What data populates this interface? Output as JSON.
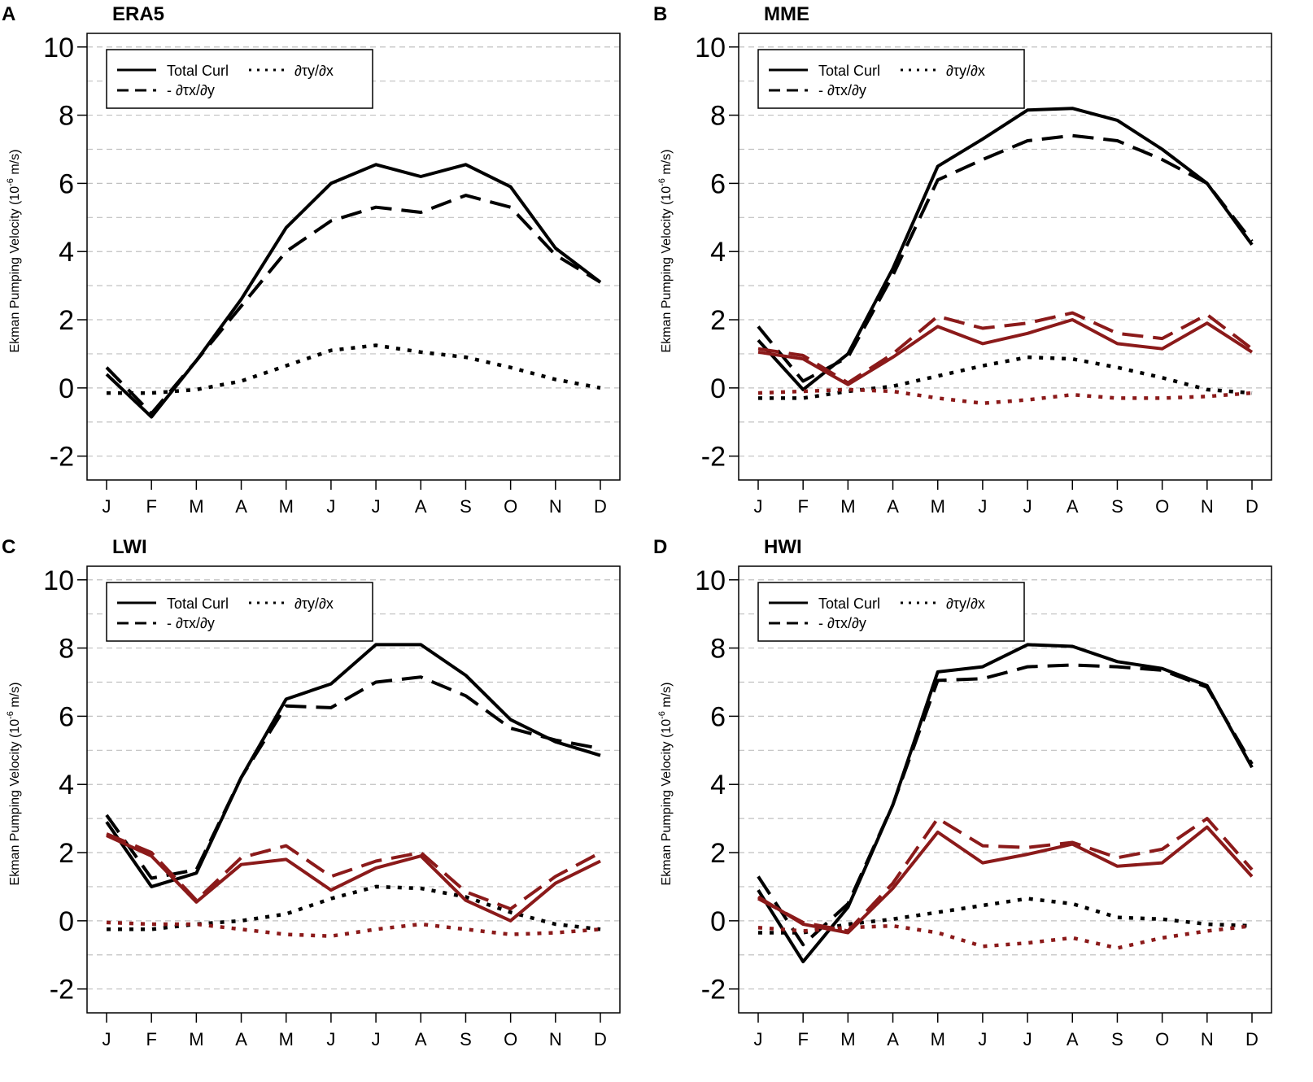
{
  "figure": {
    "y_label": "Ekman Pumping Velocity (10",
    "y_label_exp": "-6",
    "y_label_unit": " m/s)",
    "colors": {
      "black": "#000000",
      "red": "#8b1a1a",
      "grid": "#c0c0c0"
    },
    "legend": {
      "total": "Total Curl",
      "dty": "∂τy/∂x",
      "dtx": "- ∂τx/∂y"
    }
  },
  "chart_data": [
    {
      "letter": "A",
      "title": "ERA5",
      "type": "line",
      "categories": [
        "J",
        "F",
        "M",
        "A",
        "M",
        "J",
        "J",
        "A",
        "S",
        "O",
        "N",
        "D"
      ],
      "ylim": [
        -2.7,
        10.4
      ],
      "yticks": [
        -2,
        0,
        2,
        4,
        6,
        8,
        10
      ],
      "series": [
        {
          "name": "Total Curl",
          "color": "black",
          "style": "solid",
          "values": [
            0.4,
            -0.85,
            0.8,
            2.6,
            4.7,
            6.0,
            6.55,
            6.2,
            6.55,
            5.9,
            4.1,
            3.1
          ]
        },
        {
          "name": "- ∂τx/∂y",
          "color": "black",
          "style": "dashed",
          "values": [
            0.6,
            -0.75,
            0.8,
            2.4,
            4.0,
            4.9,
            5.3,
            5.15,
            5.65,
            5.3,
            3.9,
            3.1
          ]
        },
        {
          "name": "∂τy/∂x",
          "color": "black",
          "style": "dotted",
          "values": [
            -0.15,
            -0.15,
            -0.05,
            0.2,
            0.65,
            1.1,
            1.25,
            1.05,
            0.9,
            0.6,
            0.25,
            0.0
          ]
        }
      ]
    },
    {
      "letter": "B",
      "title": "MME",
      "type": "line",
      "categories": [
        "J",
        "F",
        "M",
        "A",
        "M",
        "J",
        "J",
        "A",
        "S",
        "O",
        "N",
        "D"
      ],
      "ylim": [
        -2.7,
        10.4
      ],
      "yticks": [
        -2,
        0,
        2,
        4,
        6,
        8,
        10
      ],
      "series": [
        {
          "name": "Total Curl",
          "color": "black",
          "style": "solid",
          "values": [
            1.4,
            -0.05,
            1.0,
            3.5,
            6.5,
            7.3,
            8.15,
            8.2,
            7.85,
            7.0,
            6.0,
            4.2
          ]
        },
        {
          "name": "- ∂τx/∂y",
          "color": "black",
          "style": "dashed",
          "values": [
            1.8,
            0.2,
            0.9,
            3.3,
            6.1,
            6.7,
            7.25,
            7.4,
            7.25,
            6.7,
            6.0,
            4.3
          ]
        },
        {
          "name": "∂τy/∂x",
          "color": "black",
          "style": "dotted",
          "values": [
            -0.3,
            -0.3,
            -0.1,
            0.05,
            0.35,
            0.65,
            0.9,
            0.85,
            0.6,
            0.3,
            -0.05,
            -0.15
          ]
        },
        {
          "name": "Total Curl",
          "color": "red",
          "style": "solid",
          "values": [
            1.05,
            0.85,
            0.1,
            0.9,
            1.8,
            1.3,
            1.6,
            2.0,
            1.3,
            1.15,
            1.9,
            1.05
          ]
        },
        {
          "name": "- ∂τx/∂y",
          "color": "red",
          "style": "dashed",
          "values": [
            1.15,
            0.95,
            0.15,
            1.0,
            2.1,
            1.75,
            1.9,
            2.2,
            1.6,
            1.45,
            2.15,
            1.15
          ]
        },
        {
          "name": "∂τy/∂x",
          "color": "red",
          "style": "dotted",
          "values": [
            -0.15,
            -0.1,
            -0.05,
            -0.1,
            -0.3,
            -0.45,
            -0.35,
            -0.2,
            -0.3,
            -0.3,
            -0.25,
            -0.15
          ]
        }
      ]
    },
    {
      "letter": "C",
      "title": "LWI",
      "type": "line",
      "categories": [
        "J",
        "F",
        "M",
        "A",
        "M",
        "J",
        "J",
        "A",
        "S",
        "O",
        "N",
        "D"
      ],
      "ylim": [
        -2.7,
        10.4
      ],
      "yticks": [
        -2,
        0,
        2,
        4,
        6,
        8,
        10
      ],
      "series": [
        {
          "name": "Total Curl",
          "color": "black",
          "style": "solid",
          "values": [
            2.9,
            1.0,
            1.4,
            4.2,
            6.5,
            6.95,
            8.1,
            8.1,
            7.2,
            5.9,
            5.25,
            4.85
          ]
        },
        {
          "name": "- ∂τx/∂y",
          "color": "black",
          "style": "dashed",
          "values": [
            3.1,
            1.25,
            1.5,
            4.2,
            6.3,
            6.25,
            7.0,
            7.15,
            6.6,
            5.65,
            5.3,
            5.05
          ]
        },
        {
          "name": "∂τy/∂x",
          "color": "black",
          "style": "dotted",
          "values": [
            -0.25,
            -0.25,
            -0.1,
            0.0,
            0.2,
            0.65,
            1.0,
            0.95,
            0.7,
            0.25,
            -0.1,
            -0.25
          ]
        },
        {
          "name": "Total Curl",
          "color": "red",
          "style": "solid",
          "values": [
            2.5,
            1.9,
            0.55,
            1.65,
            1.8,
            0.9,
            1.55,
            1.9,
            0.6,
            0.0,
            1.1,
            1.75
          ]
        },
        {
          "name": "- ∂τx/∂y",
          "color": "red",
          "style": "dashed",
          "values": [
            2.55,
            2.0,
            0.6,
            1.85,
            2.2,
            1.3,
            1.75,
            2.0,
            0.85,
            0.35,
            1.3,
            2.0
          ]
        },
        {
          "name": "∂τy/∂x",
          "color": "red",
          "style": "dotted",
          "values": [
            -0.05,
            -0.1,
            -0.1,
            -0.25,
            -0.4,
            -0.45,
            -0.25,
            -0.1,
            -0.25,
            -0.4,
            -0.35,
            -0.25
          ]
        }
      ]
    },
    {
      "letter": "D",
      "title": "HWI",
      "type": "line",
      "categories": [
        "J",
        "F",
        "M",
        "A",
        "M",
        "J",
        "J",
        "A",
        "S",
        "O",
        "N",
        "D"
      ],
      "ylim": [
        -2.7,
        10.4
      ],
      "yticks": [
        -2,
        0,
        2,
        4,
        6,
        8,
        10
      ],
      "series": [
        {
          "name": "Total Curl",
          "color": "black",
          "style": "solid",
          "values": [
            0.9,
            -1.2,
            0.4,
            3.4,
            7.3,
            7.45,
            8.1,
            8.05,
            7.6,
            7.4,
            6.9,
            4.5
          ]
        },
        {
          "name": "- ∂τx/∂y",
          "color": "black",
          "style": "dashed",
          "values": [
            1.3,
            -0.7,
            0.5,
            3.4,
            7.05,
            7.1,
            7.45,
            7.5,
            7.45,
            7.35,
            6.85,
            4.6
          ]
        },
        {
          "name": "∂τy/∂x",
          "color": "black",
          "style": "dotted",
          "values": [
            -0.35,
            -0.35,
            -0.1,
            0.05,
            0.25,
            0.45,
            0.65,
            0.5,
            0.1,
            0.05,
            -0.1,
            -0.15
          ]
        },
        {
          "name": "Total Curl",
          "color": "red",
          "style": "solid",
          "values": [
            0.7,
            -0.1,
            -0.35,
            0.95,
            2.6,
            1.7,
            1.95,
            2.25,
            1.6,
            1.7,
            2.75,
            1.3
          ]
        },
        {
          "name": "- ∂τx/∂y",
          "color": "red",
          "style": "dashed",
          "values": [
            0.65,
            -0.05,
            -0.3,
            1.1,
            3.0,
            2.2,
            2.15,
            2.3,
            1.85,
            2.1,
            3.0,
            1.5
          ]
        },
        {
          "name": "∂τy/∂x",
          "color": "red",
          "style": "dotted",
          "values": [
            -0.2,
            -0.3,
            -0.2,
            -0.15,
            -0.35,
            -0.75,
            -0.65,
            -0.5,
            -0.8,
            -0.5,
            -0.3,
            -0.15
          ]
        }
      ]
    }
  ]
}
